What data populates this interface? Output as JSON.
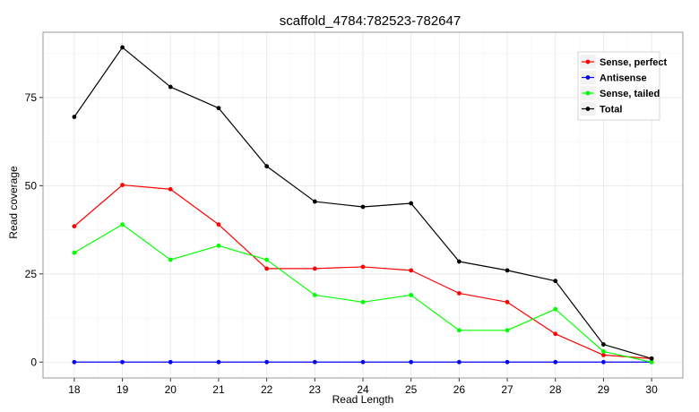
{
  "chart_data": {
    "type": "line",
    "title": "scaffold_4784:782523-782647",
    "xlabel": "Read Length",
    "ylabel": "Read coverage",
    "x": [
      18,
      19,
      20,
      21,
      22,
      23,
      24,
      25,
      26,
      27,
      28,
      29,
      30
    ],
    "xlim": [
      17.35,
      30.65
    ],
    "ylim": [
      -4.5,
      93.5
    ],
    "yticks": [
      0,
      25,
      50,
      75
    ],
    "grid": true,
    "legend_position": "top-right",
    "series": [
      {
        "name": "Sense, perfect",
        "color": "#ff0000",
        "values": [
          38.5,
          50.2,
          49.0,
          39.0,
          26.5,
          26.5,
          27.0,
          26.0,
          19.5,
          17.0,
          8.0,
          2.0,
          1.0
        ]
      },
      {
        "name": "Antisense",
        "color": "#0000ff",
        "values": [
          0,
          0,
          0,
          0,
          0,
          0,
          0,
          0,
          0,
          0,
          0,
          0,
          0
        ]
      },
      {
        "name": "Sense, tailed",
        "color": "#00ff00",
        "values": [
          31.0,
          39.0,
          29.0,
          33.0,
          29.0,
          19.0,
          17.0,
          19.0,
          9.0,
          9.0,
          15.0,
          3.0,
          0.0
        ]
      },
      {
        "name": "Total",
        "color": "#000000",
        "values": [
          69.5,
          89.2,
          78.0,
          72.0,
          55.5,
          45.5,
          44.0,
          45.0,
          28.5,
          26.0,
          23.0,
          5.0,
          1.0
        ]
      }
    ]
  }
}
